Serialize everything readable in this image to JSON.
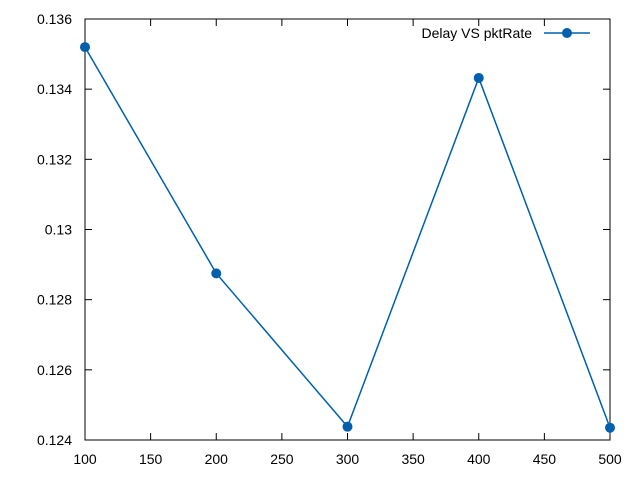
{
  "chart_data": {
    "type": "line",
    "title": "",
    "xlabel": "",
    "ylabel": "",
    "xlim": [
      100,
      500
    ],
    "ylim": [
      0.124,
      0.136
    ],
    "x_ticks": [
      100,
      150,
      200,
      250,
      300,
      350,
      400,
      450,
      500
    ],
    "x_tick_labels": [
      "100",
      "150",
      "200",
      "250",
      "300",
      "350",
      "400",
      "450",
      "500"
    ],
    "y_ticks": [
      0.124,
      0.126,
      0.128,
      0.13,
      0.132,
      0.134,
      0.136
    ],
    "y_tick_labels": [
      "0.124",
      "0.126",
      "0.128",
      "0.13",
      "0.132",
      "0.134",
      "0.136"
    ],
    "grid": false,
    "legend_position": "top-right",
    "series": [
      {
        "name": "Delay VS pktRate",
        "color": "#0060ad",
        "marker": "circle",
        "x": [
          100,
          200,
          300,
          400,
          500
        ],
        "y": [
          0.1352,
          0.12875,
          0.12438,
          0.13432,
          0.12435
        ]
      }
    ]
  }
}
